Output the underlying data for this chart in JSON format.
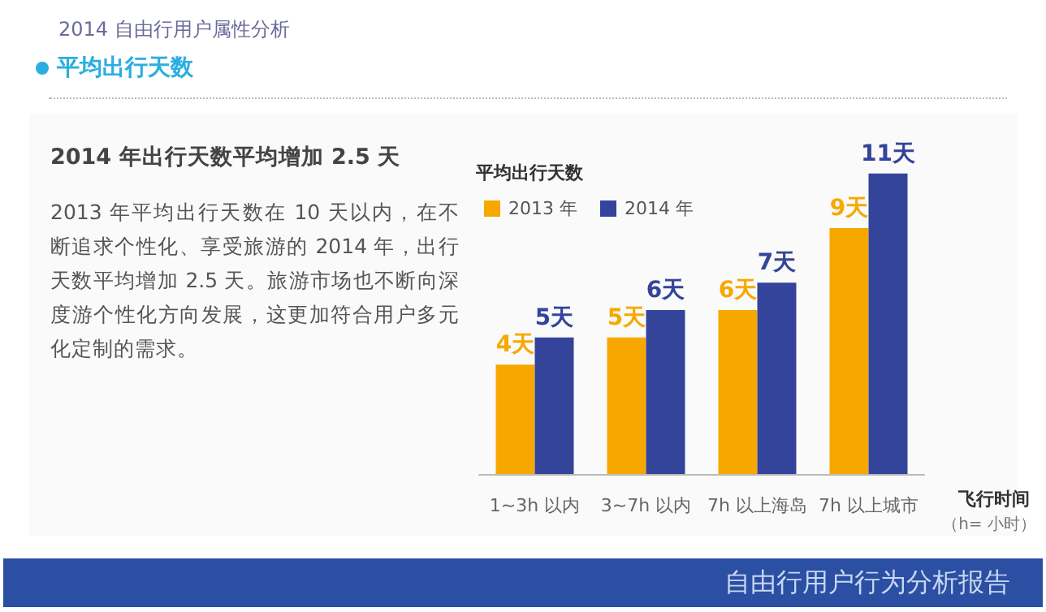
{
  "chart_data": {
    "type": "bar",
    "title": "2014 自由行用户属性分析",
    "subtitle": "平均出行天数",
    "annotations": [
      "2014 年出行天数平均增加 2.5 天",
      "2013 年平均出行天数在 10 天以内，在不断追求个性化、享受旅游的 2014 年，出行天数平均增加 2.5 天。旅游市场也不断向深度游个性化方向发展，这更加符合用户多元化定制的需求。",
      "自由行用户行为分析报告",
      "（h= 小时）"
    ],
    "legend_title": "平均出行天数",
    "xlabel": "飞行时间",
    "categories": [
      "1~3h 以内",
      "3~7h 以内",
      "7h 以上海岛",
      "7h 以上城市"
    ],
    "series": [
      {
        "name": "2013 年",
        "color": "#f7a800",
        "values": [
          4,
          5,
          6,
          9
        ],
        "value_labels": [
          "4天",
          "5天",
          "6天",
          "9天"
        ]
      },
      {
        "name": "2014 年",
        "color": "#34449a",
        "values": [
          5,
          6,
          7,
          11
        ],
        "value_labels": [
          "5天",
          "6天",
          "7天",
          "11天"
        ]
      }
    ],
    "legend": "top left"
  }
}
